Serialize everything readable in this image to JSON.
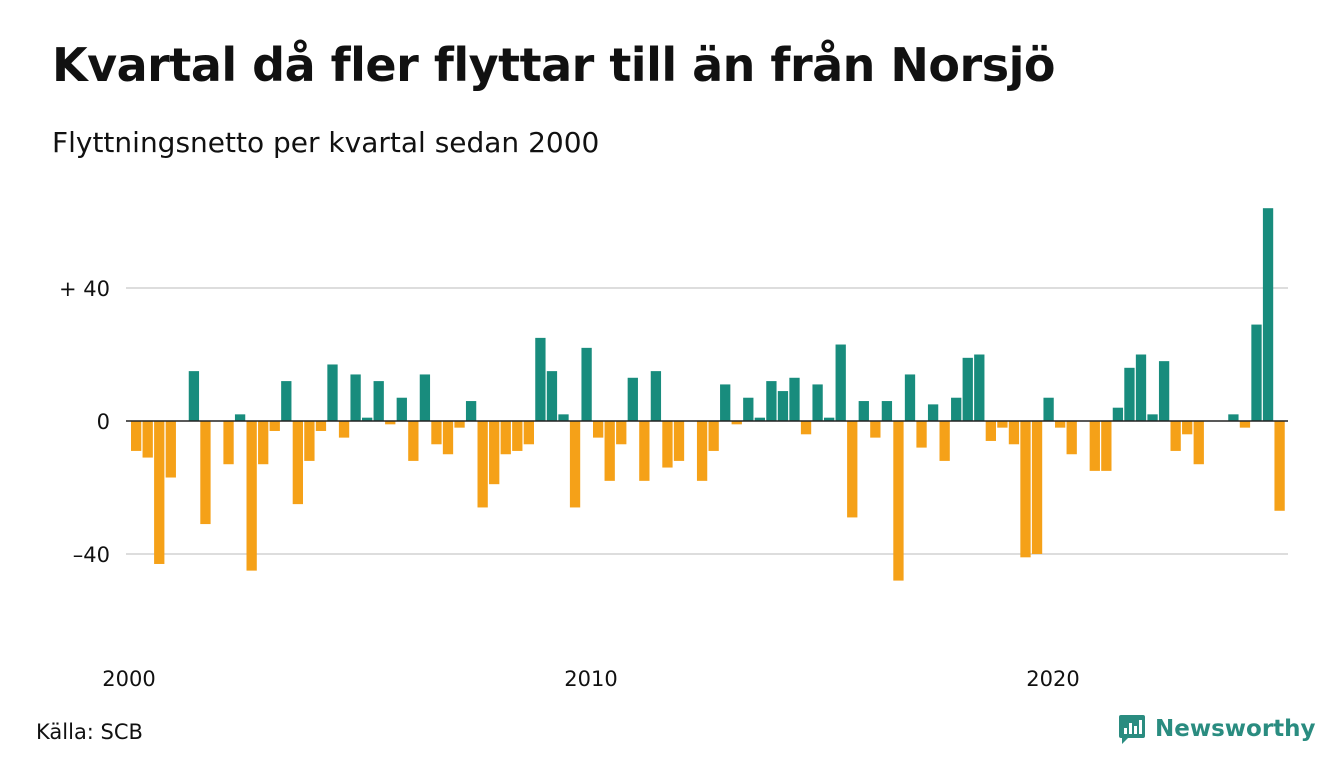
{
  "title": "Kvartal då fler flyttar till än från Norsjö",
  "subtitle": "Flyttningsnetto per kvartal sedan 2000",
  "source": "Källa: SCB",
  "brand": {
    "name": "Newsworthy",
    "icon": "newsworthy-chart-bubble-icon"
  },
  "colors": {
    "positive": "#188c7d",
    "negative": "#f5a118",
    "grid": "#dddddd",
    "zero_line": "#222222"
  },
  "chart_data": {
    "type": "bar",
    "x_start": "2000 Q1",
    "x_frequency": "quarterly",
    "x_ticks": [
      {
        "label": "2000",
        "quarter_index": 0
      },
      {
        "label": "2010",
        "quarter_index": 40
      },
      {
        "label": "2020",
        "quarter_index": 80
      }
    ],
    "y_ticks": [
      {
        "label": "+ 40",
        "value": 40
      },
      {
        "label": "0",
        "value": 0
      },
      {
        "label": "–40",
        "value": -40
      }
    ],
    "ylim": [
      -52,
      65
    ],
    "grid": true,
    "values": [
      -9,
      -11,
      -43,
      -17,
      0,
      15,
      -31,
      0,
      -13,
      2,
      -45,
      -13,
      -3,
      12,
      -25,
      -12,
      -3,
      17,
      -5,
      14,
      1,
      12,
      -1,
      7,
      -12,
      14,
      -7,
      -10,
      -2,
      6,
      -26,
      -19,
      -10,
      -9,
      -7,
      25,
      15,
      2,
      -26,
      22,
      -5,
      -18,
      -7,
      13,
      -18,
      15,
      -14,
      -12,
      0,
      -18,
      -9,
      11,
      -1,
      7,
      1,
      12,
      9,
      13,
      -4,
      11,
      1,
      23,
      -29,
      6,
      -5,
      6,
      -48,
      14,
      -8,
      5,
      -12,
      7,
      19,
      20,
      -6,
      -2,
      -7,
      -41,
      -40,
      7,
      -2,
      -10,
      0,
      -15,
      -15,
      4,
      16,
      20,
      2,
      18,
      -9,
      -4,
      -13,
      0,
      0,
      2,
      -2,
      29,
      64,
      -27
    ]
  }
}
